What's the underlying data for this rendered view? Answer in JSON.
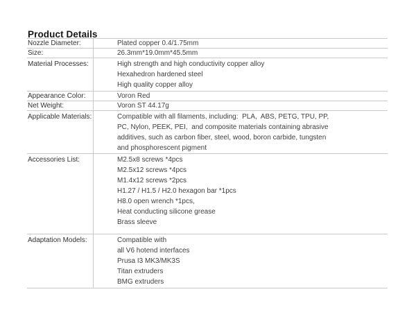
{
  "page_title": "Product Details",
  "colors": {
    "background": "#ffffff",
    "title_text": "#161618",
    "body_text": "#3f3f42",
    "rule_line": "#c8c8c8"
  },
  "table": {
    "rows": [
      {
        "label": "Nozzle Diameter:",
        "lines": [
          "Plated copper 0.4/1.75mm"
        ]
      },
      {
        "label": "Size:",
        "lines": [
          "26.3mm*19.0mm*45.5mm"
        ]
      },
      {
        "label": "Material Processes:",
        "lines": [
          "High strength and high conductivity copper alloy",
          "Hexahedron hardened steel",
          "High quality copper alloy"
        ]
      },
      {
        "label": "Appearance Color:",
        "lines": [
          "Voron Red"
        ]
      },
      {
        "label": "Net Weight:",
        "lines": [
          "Voron ST 44.17g"
        ]
      },
      {
        "label": "Applicable Materials:",
        "lines": [
          "Compatible with all filaments, including:  PLA,  ABS, PETG, TPU, PP,",
          "PC, Nylon, PEEK, PEI,  and composite materials containing abrasive",
          "additives, such as carbon fiber, steel, wood, boron carbide, tungsten",
          "and phosphorescent pigment"
        ]
      },
      {
        "label": "Accessories List:",
        "lines": [
          "M2.5x8 screws *4pcs",
          "M2.5x12 screws *4pcs",
          "M1.4x12 screws *2pcs",
          "H1.27 / H1.5 / H2.0 hexagon bar *1pcs",
          "H8.0 open wrench *1pcs,",
          "Heat conducting silicone grease",
          "Brass sleeve"
        ]
      },
      {
        "label": "Adaptation Models:",
        "lines": [
          "Compatible with",
          "all V6 hotend interfaces",
          "Prusa I3 MK3/MK3S",
          "Titan extruders",
          "BMG extruders"
        ]
      }
    ]
  }
}
